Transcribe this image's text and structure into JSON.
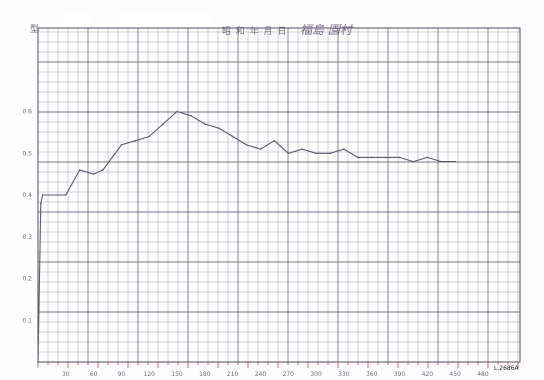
{
  "sheet": {
    "header_left": "型",
    "header_mid": "昭 和 年 月 日",
    "header_hand": "福島 園村",
    "corner_mark": "L.2686A",
    "colors": {
      "grid": "#7a7c92",
      "grid_major": "#4d5068",
      "line": "#5a5c70",
      "paper": "#fdfdfd",
      "axis_marks": "#d83a3a"
    }
  },
  "chart_data": {
    "type": "line",
    "title": "",
    "xlabel": "",
    "ylabel": "",
    "x_ticks": [
      "30",
      "60",
      "90",
      "120",
      "150",
      "180",
      "210",
      "240",
      "270",
      "300",
      "330",
      "360",
      "390",
      "420",
      "450",
      "480"
    ],
    "y_ticks": [
      "0.1",
      "0.2",
      "0.3",
      "0.4",
      "0.5",
      "0.6"
    ],
    "xlim": [
      0,
      520
    ],
    "ylim": [
      0,
      0.8
    ],
    "grid": true,
    "series": [
      {
        "x": [
          0,
          3,
          5,
          30,
          45,
          60,
          70,
          90,
          105,
          120,
          135,
          150,
          165,
          180,
          195,
          210,
          225,
          240,
          255,
          270,
          285,
          300,
          315,
          330,
          345,
          360,
          375,
          390,
          405,
          420,
          435,
          450
        ],
        "values": [
          0.0,
          0.38,
          0.4,
          0.4,
          0.46,
          0.45,
          0.46,
          0.52,
          0.53,
          0.54,
          0.57,
          0.6,
          0.59,
          0.57,
          0.56,
          0.54,
          0.52,
          0.51,
          0.53,
          0.5,
          0.51,
          0.5,
          0.5,
          0.51,
          0.49,
          0.49,
          0.49,
          0.49,
          0.48,
          0.49,
          0.48,
          0.48
        ]
      }
    ]
  }
}
